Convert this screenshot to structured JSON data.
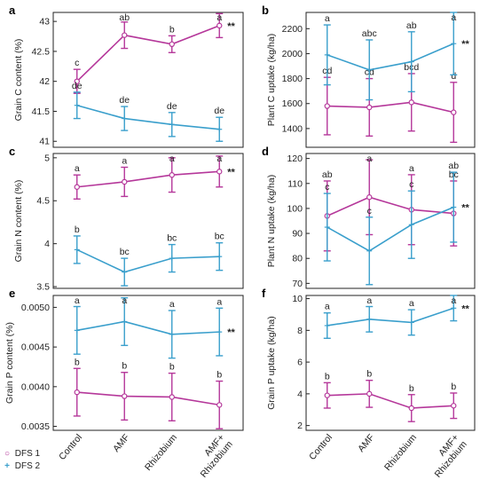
{
  "colors": {
    "dfs1": "#b5379a",
    "dfs2": "#3a9fcc"
  },
  "legend": [
    {
      "symbol": "○",
      "label": "DFS 1",
      "color": "#b5379a"
    },
    {
      "symbol": "+",
      "label": "DFS 2",
      "color": "#3a9fcc"
    }
  ],
  "categories": [
    "Control",
    "AMF",
    "Rhizobium",
    "AMF+\nRhizobium"
  ],
  "chart_data": [
    {
      "panel": "a",
      "type": "line",
      "ylabel": "Grain C content (%)",
      "ylim": [
        40.9,
        43.15
      ],
      "yticks": [
        41.0,
        41.5,
        42.0,
        42.5,
        43.0
      ],
      "series": [
        {
          "name": "DFS 1",
          "values": [
            42.0,
            42.77,
            42.62,
            42.93
          ],
          "errors": [
            0.2,
            0.22,
            0.14,
            0.2
          ],
          "letters": [
            "c",
            "ab",
            "b",
            "a"
          ]
        },
        {
          "name": "DFS 2",
          "values": [
            41.6,
            41.38,
            41.28,
            41.2
          ],
          "errors": [
            0.22,
            0.2,
            0.2,
            0.2
          ],
          "letters": [
            "de",
            "de",
            "de",
            "de"
          ]
        }
      ],
      "significance": "**"
    },
    {
      "panel": "b",
      "type": "line",
      "ylabel": "Plant C uptake (kg/ha)",
      "ylim": [
        1250,
        2330
      ],
      "yticks": [
        1400,
        1600,
        1800,
        2000,
        2200
      ],
      "series": [
        {
          "name": "DFS 1",
          "values": [
            1580,
            1570,
            1610,
            1530
          ],
          "errors": [
            230,
            230,
            230,
            240
          ],
          "letters": [
            "cd",
            "cd",
            "bcd",
            "d"
          ]
        },
        {
          "name": "DFS 2",
          "values": [
            1990,
            1870,
            1935,
            2080
          ],
          "errors": [
            240,
            240,
            240,
            250
          ],
          "letters": [
            "a",
            "abc",
            "ab",
            "a"
          ]
        }
      ],
      "significance": "**"
    },
    {
      "panel": "c",
      "type": "line",
      "ylabel": "Grain N content (%)",
      "ylim": [
        3.48,
        5.05
      ],
      "yticks": [
        3.5,
        4.0,
        4.5,
        5.0
      ],
      "series": [
        {
          "name": "DFS 1",
          "values": [
            4.66,
            4.72,
            4.8,
            4.84
          ],
          "errors": [
            0.14,
            0.17,
            0.2,
            0.18
          ],
          "letters": [
            "a",
            "a",
            "a",
            "a"
          ]
        },
        {
          "name": "DFS 2",
          "values": [
            3.93,
            3.67,
            3.83,
            3.85
          ],
          "errors": [
            0.16,
            0.16,
            0.16,
            0.16
          ],
          "letters": [
            "b",
            "bc",
            "bc",
            "bc"
          ]
        }
      ],
      "significance": "**"
    },
    {
      "panel": "d",
      "type": "line",
      "ylabel": "Plant N uptake (kg/ha)",
      "ylim": [
        68,
        122
      ],
      "yticks": [
        70,
        80,
        90,
        100,
        110,
        120
      ],
      "series": [
        {
          "name": "DFS 1",
          "values": [
            97,
            104.5,
            99.5,
            98
          ],
          "errors": [
            14,
            15,
            14,
            13
          ],
          "letters": [
            "ab",
            "a",
            "a",
            "bc"
          ]
        },
        {
          "name": "DFS 2",
          "values": [
            92.5,
            83,
            93.5,
            100.5
          ],
          "errors": [
            13.5,
            13.5,
            13.5,
            14
          ],
          "letters": [
            "c",
            "c",
            "c",
            "ab"
          ]
        }
      ],
      "significance": "**"
    },
    {
      "panel": "e",
      "type": "line",
      "ylabel": "Grain P content (%)",
      "ylim": [
        0.00345,
        0.00515
      ],
      "yticks": [
        0.0035,
        0.004,
        0.0045,
        0.005
      ],
      "ytick_labels": [
        "0.0035",
        "0.0040",
        "0.0045",
        "0.0050"
      ],
      "series": [
        {
          "name": "DFS 1",
          "values": [
            0.00393,
            0.00388,
            0.00387,
            0.00377
          ],
          "errors": [
            0.0003,
            0.0003,
            0.0003,
            0.0003
          ],
          "letters": [
            "b",
            "b",
            "b",
            "b"
          ]
        },
        {
          "name": "DFS 2",
          "values": [
            0.00471,
            0.00482,
            0.00466,
            0.00469
          ],
          "errors": [
            0.0003,
            0.0003,
            0.0003,
            0.0003
          ],
          "letters": [
            "a",
            "a",
            "a",
            "a"
          ]
        }
      ],
      "significance": "**"
    },
    {
      "panel": "f",
      "type": "line",
      "ylabel": "Grain P uptake (kg/ha)",
      "ylim": [
        1.7,
        10.2
      ],
      "yticks": [
        2,
        4,
        6,
        8,
        10
      ],
      "series": [
        {
          "name": "DFS 1",
          "values": [
            3.9,
            4.0,
            3.1,
            3.25
          ],
          "errors": [
            0.8,
            0.85,
            0.85,
            0.8
          ],
          "letters": [
            "b",
            "b",
            "b",
            "b"
          ]
        },
        {
          "name": "DFS 2",
          "values": [
            8.3,
            8.7,
            8.5,
            9.4
          ],
          "errors": [
            0.8,
            0.8,
            0.8,
            0.8
          ],
          "letters": [
            "a",
            "a",
            "a",
            "a"
          ]
        }
      ],
      "significance": "**"
    }
  ]
}
